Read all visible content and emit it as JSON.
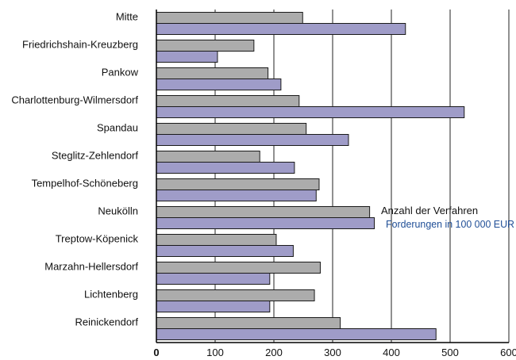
{
  "chart_data": {
    "type": "bar",
    "orientation": "horizontal",
    "categories": [
      "Mitte",
      "Friedrichshain-Kreuzberg",
      "Pankow",
      "Charlottenburg-Wilmersdorf",
      "Spandau",
      "Steglitz-Zehlendorf",
      "Tempelhof-Schöneberg",
      "Neukölln",
      "Treptow-Köpenick",
      "Marzahn-Hellersdorf",
      "Lichtenberg",
      "Reinickendorf"
    ],
    "series": [
      {
        "name": "Anzahl der Verfahren",
        "color": "#acacac",
        "values": [
          249,
          166,
          190,
          243,
          255,
          176,
          277,
          363,
          204,
          279,
          269,
          313
        ]
      },
      {
        "name": "Forderungen in 100 000 EUR",
        "color": "#9f9cc8",
        "values": [
          424,
          104,
          212,
          524,
          327,
          235,
          272,
          371,
          233,
          193,
          193,
          476
        ]
      }
    ],
    "xlim": [
      0,
      600
    ],
    "xticks": [
      "0",
      "100",
      "200",
      "300",
      "400",
      "500",
      "600"
    ],
    "grid": true,
    "legend_position": "right, beside Neukölln",
    "legend_colors": [
      "#111111",
      "#1f4e96"
    ],
    "title": "",
    "xlabel": "",
    "ylabel": ""
  }
}
